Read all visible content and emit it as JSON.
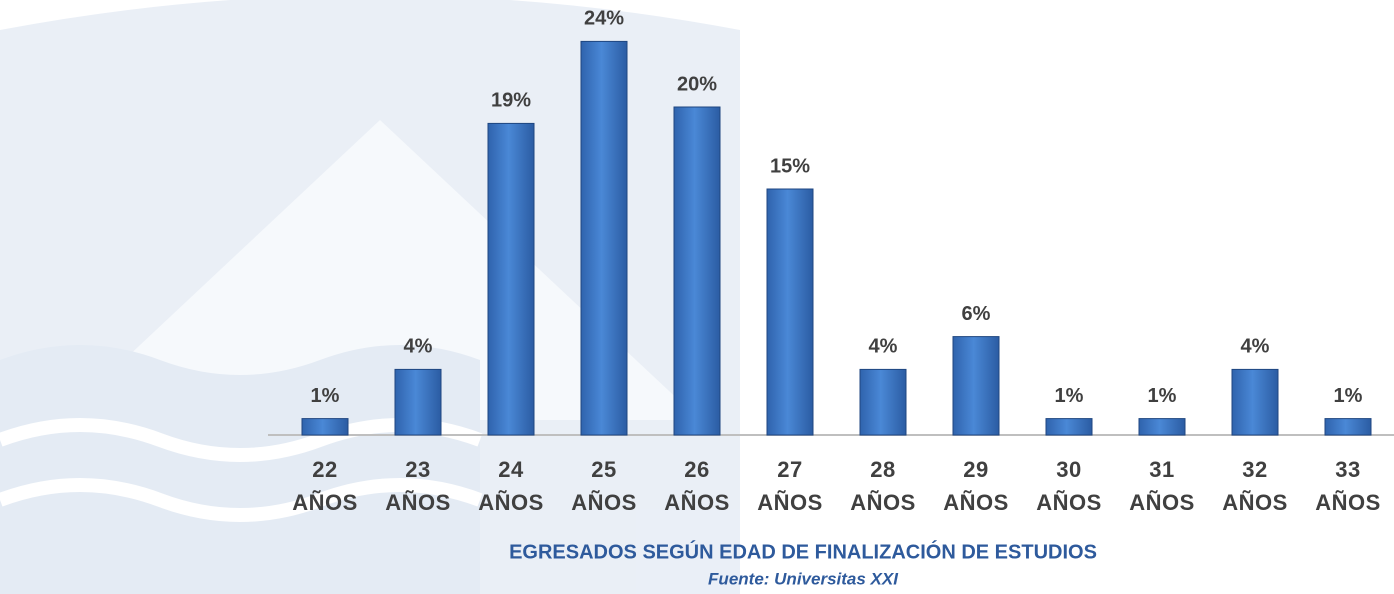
{
  "chart_data": {
    "type": "bar",
    "title": "EGRESADOS SEGÚN EDAD DE FINALIZACIÓN DE ESTUDIOS",
    "subtitle": "Fuente: Universitas XXI",
    "categories": [
      "22 AÑOS",
      "23 AÑOS",
      "24 AÑOS",
      "25 AÑOS",
      "26 AÑOS",
      "27 AÑOS",
      "28 AÑOS",
      "29 AÑOS",
      "30 AÑOS",
      "31 AÑOS",
      "32 AÑOS",
      "33 AÑOS"
    ],
    "values": [
      1,
      4,
      19,
      24,
      20,
      15,
      4,
      6,
      1,
      1,
      4,
      1
    ],
    "value_labels": [
      "1%",
      "4%",
      "19%",
      "24%",
      "20%",
      "15%",
      "4%",
      "6%",
      "1%",
      "1%",
      "4%",
      "1%"
    ],
    "color": "#3a78c9"
  }
}
